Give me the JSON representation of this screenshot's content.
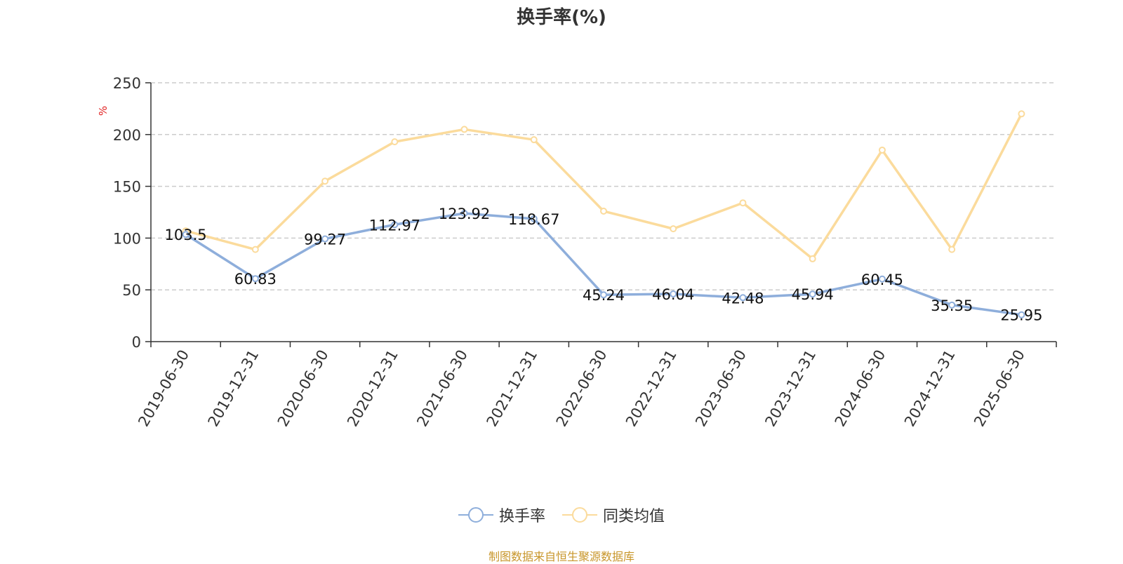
{
  "title": "换手率(%)",
  "source": "制图数据来自恒生聚源数据库",
  "chart_data": {
    "type": "line",
    "categories": [
      "2019-06-30",
      "2019-12-31",
      "2020-06-30",
      "2020-12-31",
      "2021-06-30",
      "2021-12-31",
      "2022-06-30",
      "2022-12-31",
      "2023-06-30",
      "2023-12-31",
      "2024-06-30",
      "2024-12-31",
      "2025-06-30"
    ],
    "y_unit_label": "%",
    "ylim": [
      0,
      250
    ],
    "yticks": [
      0,
      50,
      100,
      150,
      200,
      250
    ],
    "grid": true,
    "legend_position": "bottom",
    "series": [
      {
        "name": "换手率",
        "color": "#8eaedb",
        "values": [
          103.5,
          60.83,
          99.27,
          112.97,
          123.92,
          118.67,
          45.24,
          46.04,
          42.48,
          45.94,
          60.45,
          35.35,
          25.95
        ],
        "labels": [
          "103.5",
          "60.83",
          "99.27",
          "112.97",
          "123.92",
          "118.67",
          "45.24",
          "46.04",
          "42.48",
          "45.94",
          "60.45",
          "35.35",
          "25.95"
        ]
      },
      {
        "name": "同类均值",
        "color": "#fbdb9c",
        "values": [
          107,
          89,
          155,
          193,
          205,
          195,
          126,
          109,
          134,
          80,
          185,
          89,
          220
        ]
      }
    ]
  }
}
